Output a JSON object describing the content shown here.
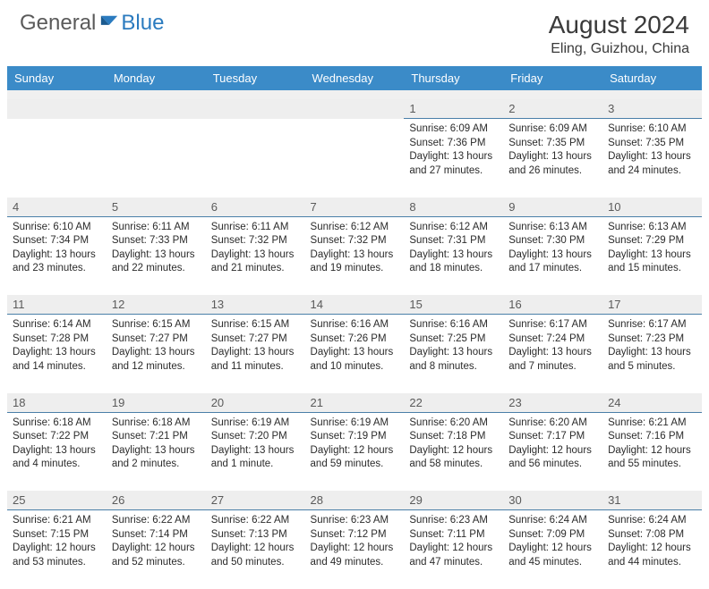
{
  "brand": {
    "general": "General",
    "blue": "Blue"
  },
  "title": "August 2024",
  "location": "Eling, Guizhou, China",
  "colors": {
    "header_bg": "#3b8bc8",
    "header_text": "#ffffff",
    "daynum_bg": "#eeeeee",
    "daynum_text": "#5a5a5a",
    "cell_border": "#4a7fa8",
    "body_text": "#2b2b2b",
    "logo_gray": "#5a5a5a",
    "logo_blue": "#2b7bbf"
  },
  "day_headers": [
    "Sunday",
    "Monday",
    "Tuesday",
    "Wednesday",
    "Thursday",
    "Friday",
    "Saturday"
  ],
  "weeks": [
    [
      null,
      null,
      null,
      null,
      {
        "n": "1",
        "sr": "6:09 AM",
        "ss": "7:36 PM",
        "dl": "13 hours and 27 minutes."
      },
      {
        "n": "2",
        "sr": "6:09 AM",
        "ss": "7:35 PM",
        "dl": "13 hours and 26 minutes."
      },
      {
        "n": "3",
        "sr": "6:10 AM",
        "ss": "7:35 PM",
        "dl": "13 hours and 24 minutes."
      }
    ],
    [
      {
        "n": "4",
        "sr": "6:10 AM",
        "ss": "7:34 PM",
        "dl": "13 hours and 23 minutes."
      },
      {
        "n": "5",
        "sr": "6:11 AM",
        "ss": "7:33 PM",
        "dl": "13 hours and 22 minutes."
      },
      {
        "n": "6",
        "sr": "6:11 AM",
        "ss": "7:32 PM",
        "dl": "13 hours and 21 minutes."
      },
      {
        "n": "7",
        "sr": "6:12 AM",
        "ss": "7:32 PM",
        "dl": "13 hours and 19 minutes."
      },
      {
        "n": "8",
        "sr": "6:12 AM",
        "ss": "7:31 PM",
        "dl": "13 hours and 18 minutes."
      },
      {
        "n": "9",
        "sr": "6:13 AM",
        "ss": "7:30 PM",
        "dl": "13 hours and 17 minutes."
      },
      {
        "n": "10",
        "sr": "6:13 AM",
        "ss": "7:29 PM",
        "dl": "13 hours and 15 minutes."
      }
    ],
    [
      {
        "n": "11",
        "sr": "6:14 AM",
        "ss": "7:28 PM",
        "dl": "13 hours and 14 minutes."
      },
      {
        "n": "12",
        "sr": "6:15 AM",
        "ss": "7:27 PM",
        "dl": "13 hours and 12 minutes."
      },
      {
        "n": "13",
        "sr": "6:15 AM",
        "ss": "7:27 PM",
        "dl": "13 hours and 11 minutes."
      },
      {
        "n": "14",
        "sr": "6:16 AM",
        "ss": "7:26 PM",
        "dl": "13 hours and 10 minutes."
      },
      {
        "n": "15",
        "sr": "6:16 AM",
        "ss": "7:25 PM",
        "dl": "13 hours and 8 minutes."
      },
      {
        "n": "16",
        "sr": "6:17 AM",
        "ss": "7:24 PM",
        "dl": "13 hours and 7 minutes."
      },
      {
        "n": "17",
        "sr": "6:17 AM",
        "ss": "7:23 PM",
        "dl": "13 hours and 5 minutes."
      }
    ],
    [
      {
        "n": "18",
        "sr": "6:18 AM",
        "ss": "7:22 PM",
        "dl": "13 hours and 4 minutes."
      },
      {
        "n": "19",
        "sr": "6:18 AM",
        "ss": "7:21 PM",
        "dl": "13 hours and 2 minutes."
      },
      {
        "n": "20",
        "sr": "6:19 AM",
        "ss": "7:20 PM",
        "dl": "13 hours and 1 minute."
      },
      {
        "n": "21",
        "sr": "6:19 AM",
        "ss": "7:19 PM",
        "dl": "12 hours and 59 minutes."
      },
      {
        "n": "22",
        "sr": "6:20 AM",
        "ss": "7:18 PM",
        "dl": "12 hours and 58 minutes."
      },
      {
        "n": "23",
        "sr": "6:20 AM",
        "ss": "7:17 PM",
        "dl": "12 hours and 56 minutes."
      },
      {
        "n": "24",
        "sr": "6:21 AM",
        "ss": "7:16 PM",
        "dl": "12 hours and 55 minutes."
      }
    ],
    [
      {
        "n": "25",
        "sr": "6:21 AM",
        "ss": "7:15 PM",
        "dl": "12 hours and 53 minutes."
      },
      {
        "n": "26",
        "sr": "6:22 AM",
        "ss": "7:14 PM",
        "dl": "12 hours and 52 minutes."
      },
      {
        "n": "27",
        "sr": "6:22 AM",
        "ss": "7:13 PM",
        "dl": "12 hours and 50 minutes."
      },
      {
        "n": "28",
        "sr": "6:23 AM",
        "ss": "7:12 PM",
        "dl": "12 hours and 49 minutes."
      },
      {
        "n": "29",
        "sr": "6:23 AM",
        "ss": "7:11 PM",
        "dl": "12 hours and 47 minutes."
      },
      {
        "n": "30",
        "sr": "6:24 AM",
        "ss": "7:09 PM",
        "dl": "12 hours and 45 minutes."
      },
      {
        "n": "31",
        "sr": "6:24 AM",
        "ss": "7:08 PM",
        "dl": "12 hours and 44 minutes."
      }
    ]
  ],
  "labels": {
    "sunrise": "Sunrise: ",
    "sunset": "Sunset: ",
    "daylight": "Daylight: "
  }
}
